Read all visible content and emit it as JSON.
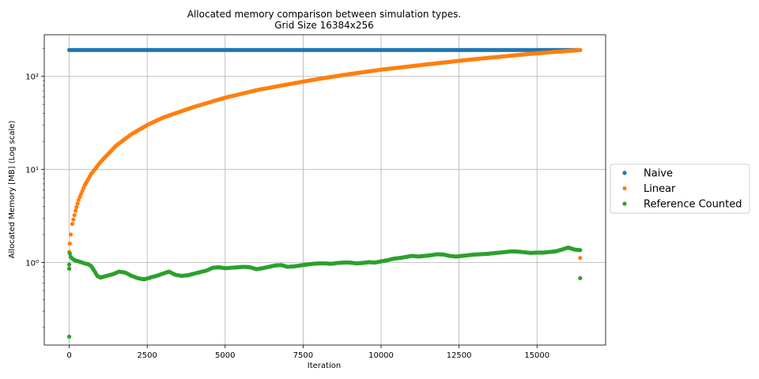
{
  "chart_data": {
    "type": "scatter",
    "title": "Allocated memory comparison between simulation types.",
    "subtitle": "Grid Size 16384x256",
    "xlabel": "Iteration",
    "ylabel": "Allocated Memory [MB] (Log scale)",
    "xlim": [
      -800,
      17200
    ],
    "ylim": [
      0.13,
      280
    ],
    "yscale": "log",
    "grid": true,
    "legend_position": "outside-right",
    "x_ticks": [
      0,
      2500,
      5000,
      7500,
      10000,
      12500,
      15000
    ],
    "x_tick_labels": [
      "0",
      "2500",
      "5000",
      "7500",
      "10000",
      "12500",
      "15000"
    ],
    "y_ticks": [
      1,
      10,
      100
    ],
    "y_tick_labels": [
      "10⁰",
      "10¹",
      "10²"
    ],
    "series": [
      {
        "name": "Naive",
        "color": "#1f77b4",
        "x": [
          0,
          500,
          1000,
          2000,
          3000,
          4000,
          5000,
          6000,
          7000,
          8000,
          9000,
          10000,
          11000,
          12000,
          13000,
          14000,
          15000,
          16000,
          16384
        ],
        "y": [
          192,
          192,
          192,
          192,
          192,
          192,
          192,
          192,
          192,
          192,
          192,
          192,
          192,
          192,
          192,
          192,
          192,
          192,
          192
        ]
      },
      {
        "name": "Linear",
        "color": "#ff7f0e",
        "x": [
          0,
          20,
          50,
          100,
          200,
          300,
          500,
          700,
          1000,
          1500,
          2000,
          2500,
          3000,
          4000,
          5000,
          6000,
          7000,
          8000,
          9000,
          10000,
          11000,
          12000,
          13000,
          14000,
          15000,
          16000,
          16384,
          16384
        ],
        "y": [
          1.3,
          1.6,
          2.0,
          2.6,
          3.6,
          4.7,
          6.8,
          8.9,
          12,
          18,
          24,
          30,
          36,
          47,
          59,
          71,
          82,
          94,
          106,
          118,
          129,
          141,
          153,
          165,
          177,
          188,
          192,
          1.12
        ]
      },
      {
        "name": "Reference Counted",
        "color": "#2ca02c",
        "x": [
          0,
          0,
          0,
          20,
          50,
          100,
          200,
          300,
          500,
          600,
          700,
          800,
          900,
          1000,
          1200,
          1400,
          1600,
          1800,
          2000,
          2200,
          2400,
          2600,
          2800,
          3000,
          3200,
          3400,
          3600,
          3800,
          4000,
          4200,
          4400,
          4600,
          4800,
          5000,
          5200,
          5400,
          5600,
          5800,
          6000,
          6200,
          6400,
          6600,
          6800,
          7000,
          7200,
          7400,
          7600,
          7800,
          8000,
          8200,
          8400,
          8600,
          8800,
          9000,
          9200,
          9400,
          9600,
          9800,
          10000,
          10200,
          10400,
          10600,
          10800,
          11000,
          11200,
          11400,
          11600,
          11800,
          12000,
          12200,
          12400,
          12600,
          12800,
          13000,
          13200,
          13400,
          13600,
          13800,
          14000,
          14200,
          14400,
          14600,
          14800,
          15000,
          15200,
          15400,
          15600,
          15800,
          16000,
          16200,
          16384,
          16384
        ],
        "y": [
          0.16,
          0.86,
          0.95,
          1.25,
          1.15,
          1.1,
          1.05,
          1.03,
          0.98,
          0.96,
          0.92,
          0.82,
          0.72,
          0.69,
          0.72,
          0.75,
          0.8,
          0.78,
          0.72,
          0.68,
          0.66,
          0.69,
          0.72,
          0.76,
          0.8,
          0.74,
          0.72,
          0.73,
          0.76,
          0.79,
          0.82,
          0.88,
          0.89,
          0.87,
          0.88,
          0.89,
          0.9,
          0.89,
          0.85,
          0.87,
          0.9,
          0.93,
          0.94,
          0.9,
          0.91,
          0.93,
          0.95,
          0.97,
          0.98,
          0.98,
          0.97,
          0.99,
          1.0,
          1.0,
          0.98,
          0.99,
          1.01,
          1.0,
          1.03,
          1.06,
          1.1,
          1.12,
          1.15,
          1.18,
          1.16,
          1.18,
          1.2,
          1.23,
          1.22,
          1.18,
          1.16,
          1.18,
          1.2,
          1.22,
          1.23,
          1.24,
          1.26,
          1.28,
          1.3,
          1.32,
          1.31,
          1.29,
          1.27,
          1.28,
          1.28,
          1.3,
          1.32,
          1.38,
          1.45,
          1.38,
          1.36,
          0.68
        ]
      }
    ]
  }
}
